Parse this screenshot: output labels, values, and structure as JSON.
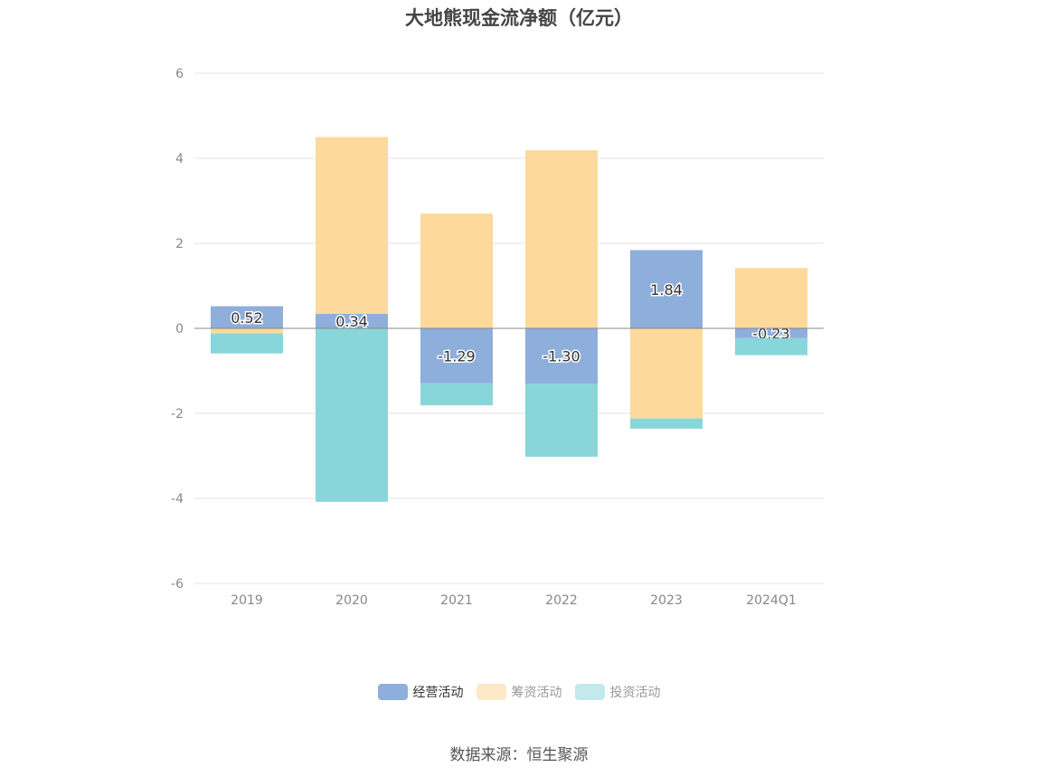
{
  "chart_data": {
    "type": "bar",
    "stacked": true,
    "title": "大地熊现金流净额（亿元）",
    "categories": [
      "2019",
      "2020",
      "2021",
      "2022",
      "2023",
      "2024Q1"
    ],
    "ylim": [
      -6,
      6
    ],
    "yticks": [
      6,
      4,
      2,
      0,
      -2,
      -4,
      -6
    ],
    "grid": true,
    "legend_position": "bottom",
    "series": [
      {
        "name": "经营活动",
        "color": "#8eaedb",
        "values": [
          0.52,
          0.34,
          -1.29,
          -1.3,
          1.84,
          -0.23
        ],
        "labels": [
          "0.52",
          "0.34",
          "-1.29",
          "-1.30",
          "1.84",
          "-0.23"
        ]
      },
      {
        "name": "筹资活动",
        "color": "#fdd99b",
        "values": [
          -0.12,
          4.16,
          2.7,
          4.19,
          -2.12,
          1.42
        ]
      },
      {
        "name": "投资活动",
        "color": "#88d6da",
        "values": [
          -0.47,
          -4.08,
          -0.52,
          -1.72,
          -0.24,
          -0.4
        ]
      }
    ],
    "legend": [
      {
        "name": "经营活动",
        "color": "#8eaedb",
        "active": true
      },
      {
        "name": "筹资活动",
        "color": "#fde9c8",
        "active": false
      },
      {
        "name": "投资活动",
        "color": "#c3e9ec",
        "active": false
      }
    ]
  },
  "source": "数据来源：恒生聚源"
}
